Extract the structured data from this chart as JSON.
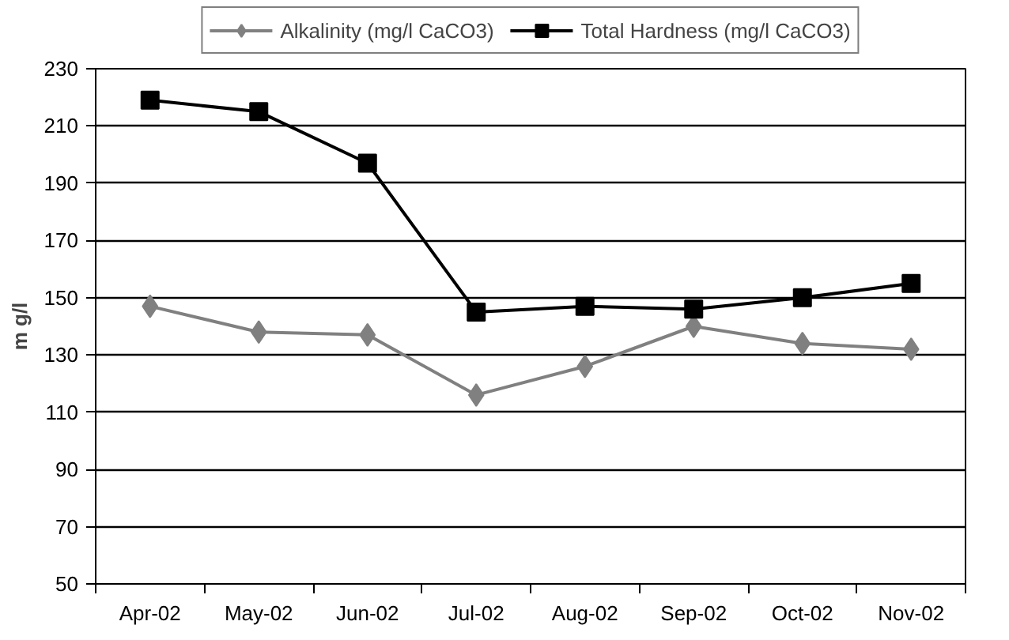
{
  "chart_data": {
    "type": "line",
    "ylabel": "m g/l",
    "categories": [
      "Apr-02",
      "May-02",
      "Jun-02",
      "Jul-02",
      "Aug-02",
      "Sep-02",
      "Oct-02",
      "Nov-02"
    ],
    "series": [
      {
        "name": "Alkalinity (mg/l CaCO3)",
        "color": "#808080",
        "marker": "diamond",
        "values": [
          147,
          138,
          137,
          116,
          126,
          140,
          134,
          132
        ]
      },
      {
        "name": "Total Hardness (mg/l CaCO3)",
        "color": "#000000",
        "marker": "square",
        "values": [
          219,
          215,
          197,
          145,
          147,
          146,
          150,
          155
        ]
      }
    ],
    "ylim": [
      50,
      230
    ],
    "yticks": [
      50,
      70,
      90,
      110,
      130,
      150,
      170,
      190,
      210,
      230
    ],
    "grid": "y",
    "legend": "top",
    "line_style": "solid"
  }
}
